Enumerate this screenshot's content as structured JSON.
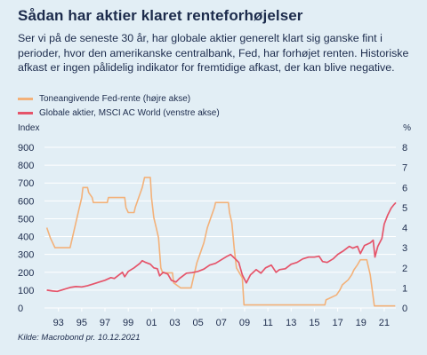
{
  "header": {
    "title": "Sådan har aktier klaret renteforhøjelser",
    "subtitle": "Ser vi på de seneste 30 år, har globale aktier generelt klart sig ganske fint i perioder, hvor den amerikanske centralbank, Fed, har forhøjet renten. Historiske afkast er ingen pålidelig indikator for fremtidige afkast, der kan blive negative."
  },
  "footer": {
    "source": "Kilde: Macrobond pr. 10.12.2021"
  },
  "colors": {
    "fed_rate": "#f3b179",
    "msci": "#e5546a",
    "grid": "#ffffff",
    "background": "#e2eef5",
    "text": "#1c2b4c"
  },
  "chart_data": {
    "type": "line",
    "left_axis_label": "Index",
    "right_axis_label": "%",
    "left_ticks": [
      "0",
      "100",
      "200",
      "300",
      "400",
      "500",
      "600",
      "700",
      "800",
      "900"
    ],
    "right_ticks": [
      "0",
      "1",
      "2",
      "3",
      "4",
      "5",
      "6",
      "7",
      "8"
    ],
    "x_tick_labels": [
      "93",
      "95",
      "97",
      "99",
      "01",
      "03",
      "05",
      "07",
      "09",
      "11",
      "13",
      "15",
      "17",
      "19",
      "21"
    ],
    "x_tick_years": [
      1993,
      1995,
      1997,
      1999,
      2001,
      2003,
      2005,
      2007,
      2009,
      2011,
      2013,
      2015,
      2017,
      2019,
      2021
    ],
    "ylim_left": [
      0,
      900
    ],
    "ylim_right": [
      0,
      8
    ],
    "xlim": [
      1991.8,
      2022.0
    ],
    "grid": true,
    "legend_position": "top-left",
    "series": [
      {
        "name": "Toneangivende Fed-rente (højre akse)",
        "axis": "right",
        "points": [
          [
            1992.0,
            4.0
          ],
          [
            1992.3,
            3.5
          ],
          [
            1992.7,
            3.0
          ],
          [
            1993.0,
            3.0
          ],
          [
            1994.0,
            3.0
          ],
          [
            1994.2,
            3.5
          ],
          [
            1994.5,
            4.25
          ],
          [
            1994.8,
            5.0
          ],
          [
            1995.0,
            5.5
          ],
          [
            1995.1,
            6.0
          ],
          [
            1995.5,
            6.0
          ],
          [
            1995.6,
            5.75
          ],
          [
            1995.9,
            5.5
          ],
          [
            1996.0,
            5.25
          ],
          [
            1997.2,
            5.25
          ],
          [
            1997.3,
            5.5
          ],
          [
            1998.7,
            5.5
          ],
          [
            1998.8,
            5.0
          ],
          [
            1999.0,
            4.75
          ],
          [
            1999.5,
            4.75
          ],
          [
            1999.6,
            5.0
          ],
          [
            1999.9,
            5.5
          ],
          [
            2000.2,
            6.0
          ],
          [
            2000.4,
            6.5
          ],
          [
            2000.9,
            6.5
          ],
          [
            2001.0,
            5.5
          ],
          [
            2001.2,
            4.5
          ],
          [
            2001.4,
            4.0
          ],
          [
            2001.6,
            3.5
          ],
          [
            2001.8,
            2.0
          ],
          [
            2001.95,
            1.75
          ],
          [
            2002.8,
            1.75
          ],
          [
            2002.9,
            1.25
          ],
          [
            2003.5,
            1.0
          ],
          [
            2004.4,
            1.0
          ],
          [
            2004.5,
            1.25
          ],
          [
            2004.7,
            1.75
          ],
          [
            2004.9,
            2.25
          ],
          [
            2005.2,
            2.75
          ],
          [
            2005.5,
            3.25
          ],
          [
            2005.8,
            4.0
          ],
          [
            2006.1,
            4.5
          ],
          [
            2006.4,
            5.0
          ],
          [
            2006.5,
            5.25
          ],
          [
            2007.6,
            5.25
          ],
          [
            2007.7,
            4.75
          ],
          [
            2007.9,
            4.25
          ],
          [
            2008.1,
            3.0
          ],
          [
            2008.3,
            2.0
          ],
          [
            2008.8,
            1.5
          ],
          [
            2008.95,
            0.15
          ],
          [
            2015.9,
            0.15
          ],
          [
            2016.0,
            0.4
          ],
          [
            2016.9,
            0.65
          ],
          [
            2017.2,
            0.9
          ],
          [
            2017.4,
            1.15
          ],
          [
            2017.9,
            1.4
          ],
          [
            2018.2,
            1.65
          ],
          [
            2018.4,
            1.9
          ],
          [
            2018.7,
            2.15
          ],
          [
            2018.95,
            2.4
          ],
          [
            2019.5,
            2.4
          ],
          [
            2019.6,
            2.15
          ],
          [
            2019.7,
            1.9
          ],
          [
            2019.8,
            1.65
          ],
          [
            2020.15,
            0.1
          ],
          [
            2021.95,
            0.1
          ]
        ]
      },
      {
        "name": "Globale aktier, MSCI AC World (venstre akse)",
        "axis": "left",
        "points": [
          [
            1992.0,
            100
          ],
          [
            1992.5,
            95
          ],
          [
            1992.9,
            93
          ],
          [
            1993.5,
            105
          ],
          [
            1994.0,
            115
          ],
          [
            1994.5,
            120
          ],
          [
            1995.0,
            118
          ],
          [
            1995.5,
            125
          ],
          [
            1996.0,
            135
          ],
          [
            1996.5,
            145
          ],
          [
            1997.0,
            155
          ],
          [
            1997.5,
            170
          ],
          [
            1997.8,
            165
          ],
          [
            1998.0,
            175
          ],
          [
            1998.5,
            200
          ],
          [
            1998.7,
            175
          ],
          [
            1999.0,
            205
          ],
          [
            1999.5,
            225
          ],
          [
            2000.0,
            250
          ],
          [
            2000.2,
            265
          ],
          [
            2000.5,
            255
          ],
          [
            2000.9,
            245
          ],
          [
            2001.2,
            225
          ],
          [
            2001.5,
            220
          ],
          [
            2001.7,
            180
          ],
          [
            2002.0,
            200
          ],
          [
            2002.4,
            190
          ],
          [
            2002.7,
            155
          ],
          [
            2003.1,
            145
          ],
          [
            2003.4,
            165
          ],
          [
            2003.8,
            185
          ],
          [
            2004.0,
            195
          ],
          [
            2004.5,
            198
          ],
          [
            2005.0,
            205
          ],
          [
            2005.5,
            218
          ],
          [
            2006.0,
            240
          ],
          [
            2006.5,
            250
          ],
          [
            2007.0,
            270
          ],
          [
            2007.5,
            290
          ],
          [
            2007.8,
            300
          ],
          [
            2008.2,
            275
          ],
          [
            2008.5,
            255
          ],
          [
            2008.8,
            185
          ],
          [
            2009.15,
            140
          ],
          [
            2009.5,
            185
          ],
          [
            2010.0,
            215
          ],
          [
            2010.4,
            195
          ],
          [
            2010.8,
            225
          ],
          [
            2011.3,
            240
          ],
          [
            2011.7,
            200
          ],
          [
            2012.0,
            215
          ],
          [
            2012.5,
            220
          ],
          [
            2013.0,
            245
          ],
          [
            2013.5,
            255
          ],
          [
            2014.0,
            275
          ],
          [
            2014.5,
            285
          ],
          [
            2015.0,
            285
          ],
          [
            2015.4,
            290
          ],
          [
            2015.7,
            260
          ],
          [
            2016.1,
            255
          ],
          [
            2016.6,
            275
          ],
          [
            2017.0,
            300
          ],
          [
            2017.5,
            320
          ],
          [
            2018.0,
            345
          ],
          [
            2018.3,
            335
          ],
          [
            2018.7,
            345
          ],
          [
            2018.95,
            305
          ],
          [
            2019.3,
            350
          ],
          [
            2019.8,
            365
          ],
          [
            2020.05,
            380
          ],
          [
            2020.2,
            285
          ],
          [
            2020.45,
            345
          ],
          [
            2020.8,
            390
          ],
          [
            2021.0,
            470
          ],
          [
            2021.3,
            520
          ],
          [
            2021.6,
            560
          ],
          [
            2021.85,
            580
          ],
          [
            2022.0,
            590
          ]
        ]
      }
    ]
  }
}
